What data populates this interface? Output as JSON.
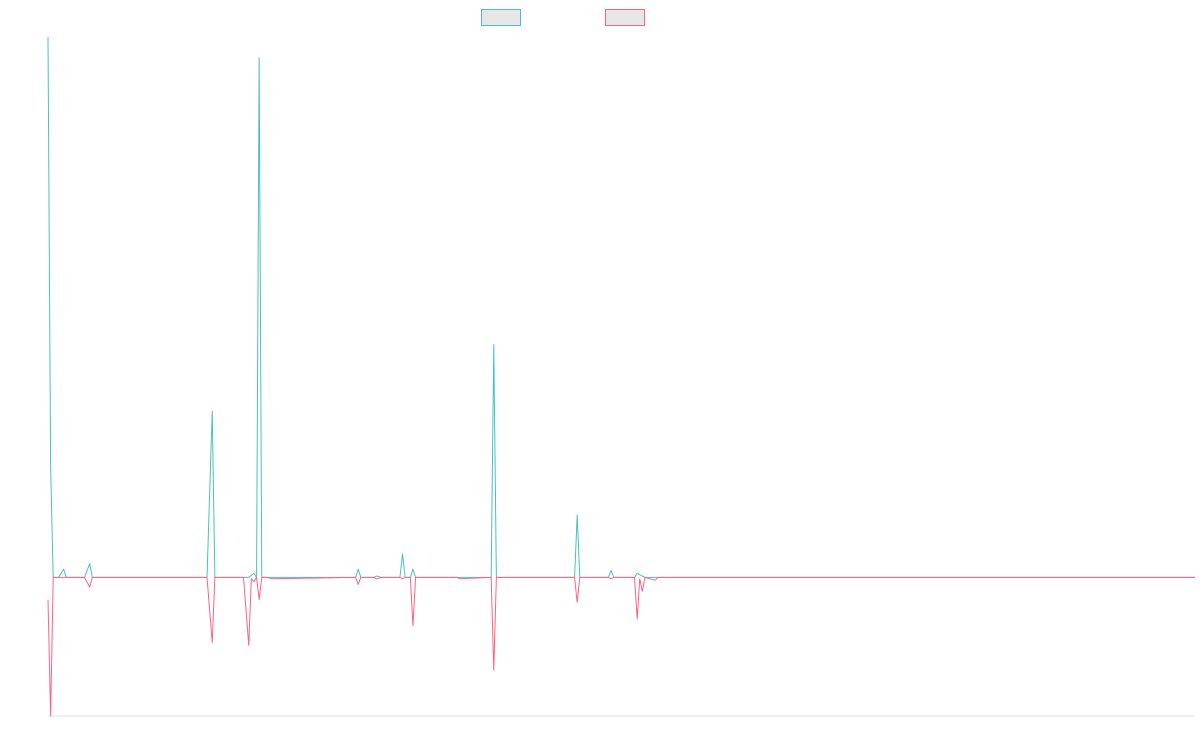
{
  "chart_data": {
    "type": "line",
    "title": "",
    "xlabel": "",
    "ylabel": "",
    "grid": false,
    "legend_position": "top-center",
    "ylim": [
      -100,
      390
    ],
    "series": [
      {
        "name": "",
        "color": "#4bc0c0",
        "fill": "#e6e6e6",
        "points": [
          [
            0,
            390
          ],
          [
            1,
            80
          ],
          [
            2,
            0
          ],
          [
            4,
            0
          ],
          [
            6,
            6
          ],
          [
            7,
            0
          ],
          [
            14,
            0
          ],
          [
            16,
            10
          ],
          [
            17,
            0
          ],
          [
            60,
            0
          ],
          [
            61,
            0
          ],
          [
            63,
            120
          ],
          [
            64,
            0
          ],
          [
            75,
            0
          ],
          [
            77,
            0
          ],
          [
            79,
            3
          ],
          [
            80,
            0
          ],
          [
            81,
            375
          ],
          [
            82,
            0
          ],
          [
            84,
            0
          ],
          [
            86,
            0
          ],
          [
            118,
            0
          ],
          [
            119,
            6
          ],
          [
            120,
            0
          ],
          [
            125,
            0
          ],
          [
            126,
            1
          ],
          [
            128,
            0
          ],
          [
            135,
            0
          ],
          [
            136,
            17
          ],
          [
            137,
            0
          ],
          [
            139,
            0
          ],
          [
            140,
            6
          ],
          [
            141,
            0
          ],
          [
            156,
            0
          ],
          [
            157,
            0
          ],
          [
            158,
            0
          ],
          [
            170,
            0
          ],
          [
            171,
            168
          ],
          [
            172,
            0
          ],
          [
            202,
            0
          ],
          [
            203,
            45
          ],
          [
            204,
            0
          ],
          [
            215,
            0
          ],
          [
            216,
            5
          ],
          [
            217,
            0
          ],
          [
            225,
            0
          ],
          [
            226,
            3
          ],
          [
            227,
            2
          ],
          [
            228,
            1
          ],
          [
            229,
            0
          ],
          [
            233,
            0
          ],
          [
            440,
            0
          ]
        ]
      },
      {
        "name": "",
        "color": "#ff6384",
        "fill": "#e6e6e6",
        "points": [
          [
            0,
            -16
          ],
          [
            1,
            -100
          ],
          [
            2,
            0
          ],
          [
            14,
            0
          ],
          [
            16,
            -7
          ],
          [
            17,
            0
          ],
          [
            60,
            0
          ],
          [
            61,
            0
          ],
          [
            63,
            -47
          ],
          [
            64,
            0
          ],
          [
            75,
            0
          ],
          [
            77,
            -49
          ],
          [
            78,
            -1
          ],
          [
            79,
            -3
          ],
          [
            80,
            0
          ],
          [
            81,
            -16
          ],
          [
            82,
            0
          ],
          [
            84,
            0
          ],
          [
            86,
            -1
          ],
          [
            118,
            0
          ],
          [
            119,
            -5
          ],
          [
            120,
            0
          ],
          [
            125,
            0
          ],
          [
            126,
            -1
          ],
          [
            128,
            0
          ],
          [
            135,
            0
          ],
          [
            136,
            -1
          ],
          [
            137,
            0
          ],
          [
            139,
            0
          ],
          [
            140,
            -35
          ],
          [
            141,
            0
          ],
          [
            156,
            0
          ],
          [
            157,
            0
          ],
          [
            158,
            -1
          ],
          [
            170,
            0
          ],
          [
            171,
            -67
          ],
          [
            172,
            0
          ],
          [
            202,
            0
          ],
          [
            203,
            -18
          ],
          [
            204,
            0
          ],
          [
            215,
            0
          ],
          [
            216,
            -1
          ],
          [
            217,
            0
          ],
          [
            225,
            0
          ],
          [
            226,
            -30
          ],
          [
            227,
            -1
          ],
          [
            228,
            -10
          ],
          [
            229,
            0
          ],
          [
            233,
            -2
          ],
          [
            234,
            0
          ],
          [
            440,
            0
          ]
        ]
      }
    ]
  }
}
